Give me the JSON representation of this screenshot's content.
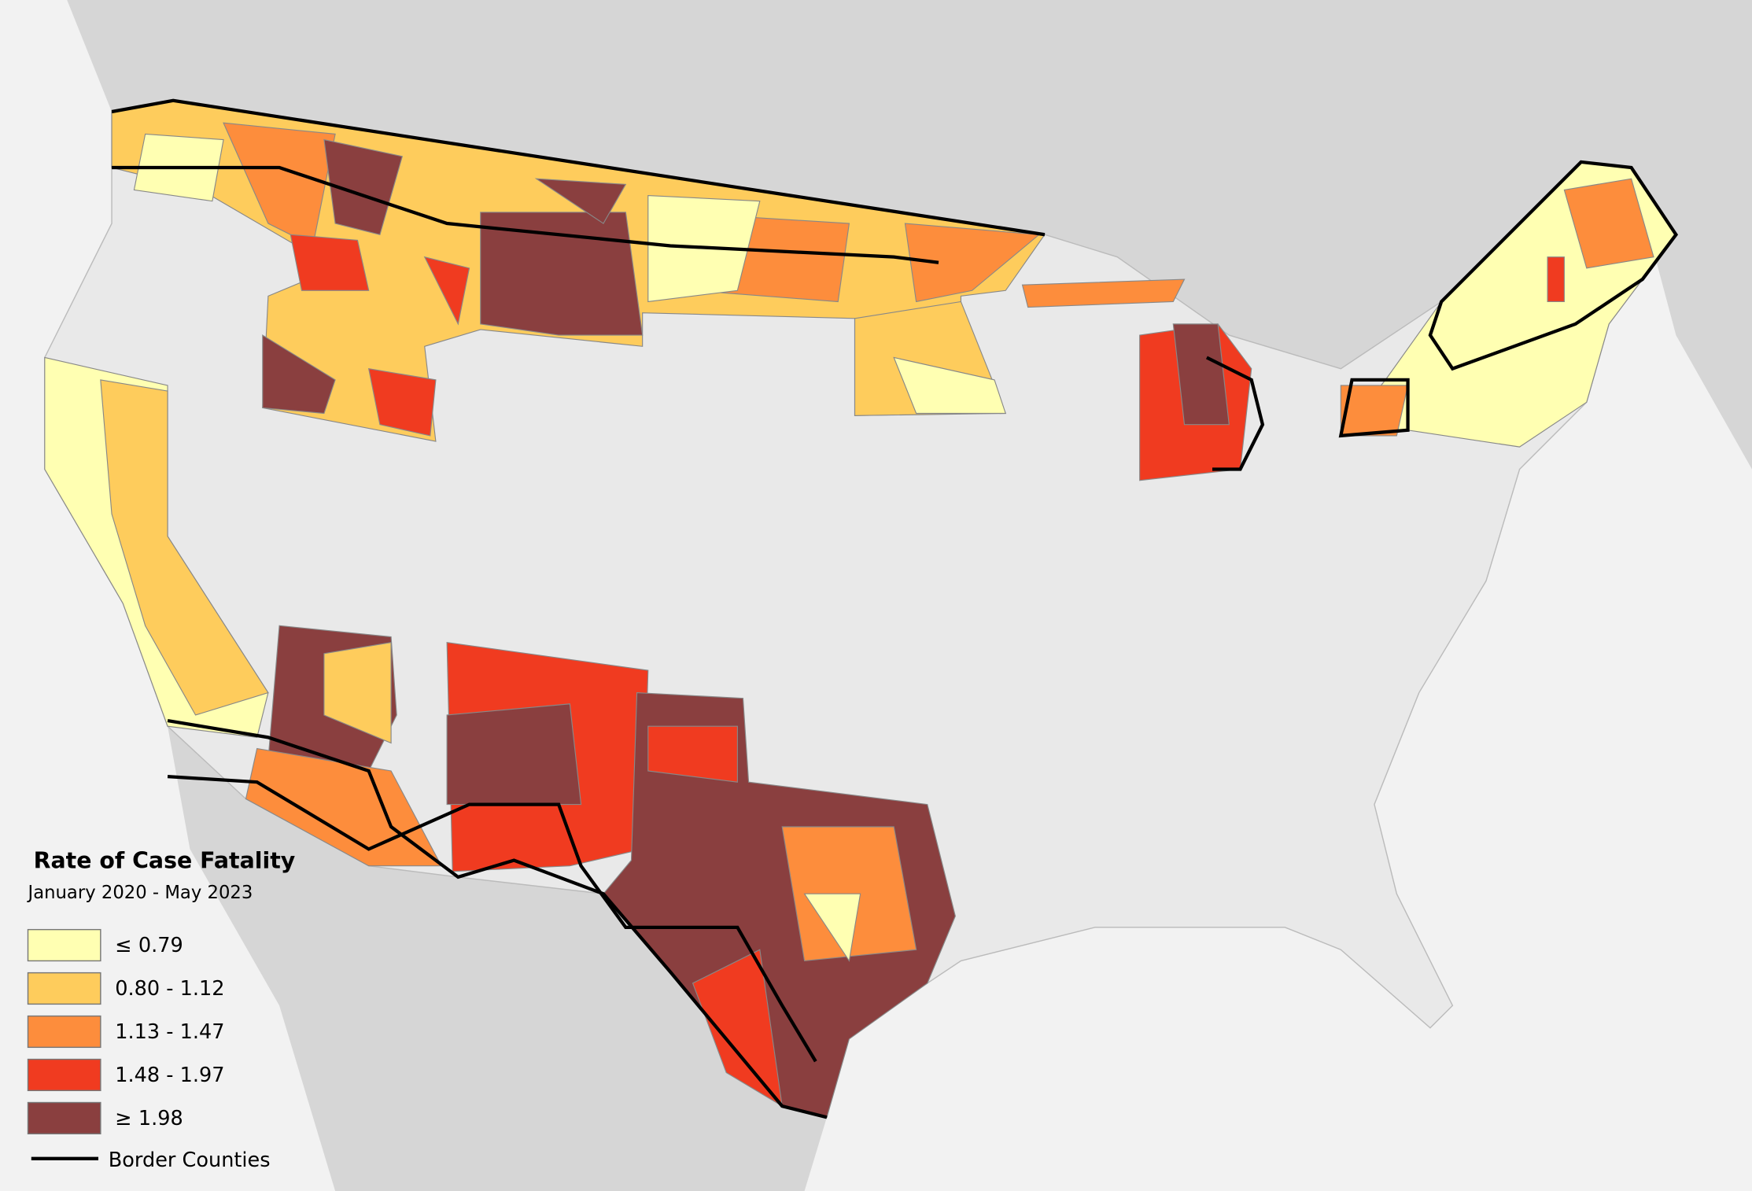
{
  "legend": {
    "title": "Rate of Case Fatality",
    "subtitle": "January 2020 - May 2023",
    "classes": [
      {
        "label": "≤ 0.79",
        "color": "#ffffb2"
      },
      {
        "label": "0.80 - 1.12",
        "color": "#fecc5c"
      },
      {
        "label": "1.13 - 1.47",
        "color": "#fd8d3c"
      },
      {
        "label": "1.48 - 1.97",
        "color": "#f03b20"
      },
      {
        "label": "≥ 1.98",
        "color": "#8a3f3f"
      }
    ],
    "border_label": "Border Counties"
  }
}
